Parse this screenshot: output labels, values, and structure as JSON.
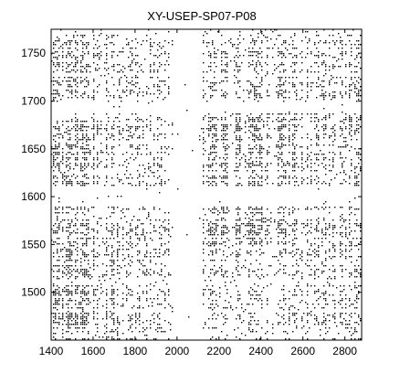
{
  "chart_data": {
    "type": "scatter",
    "title": "XY-USEP-SP07-P08",
    "xlabel": "",
    "ylabel": "",
    "xlim": [
      1400,
      2880
    ],
    "ylim": [
      1450,
      1775
    ],
    "x_ticks": [
      1400,
      1600,
      1800,
      2000,
      2200,
      2400,
      2600,
      2800
    ],
    "y_ticks": [
      1500,
      1550,
      1600,
      1650,
      1700,
      1750
    ],
    "grid": false,
    "legend": "none",
    "marker_color": "#000000",
    "description": "Dense recurrence-style dot plot; black dots scattered over the full range with dense blocks near x 1400-1720 and y 1450-1680, and x 2100-2550 and y 1550-1680, and sparse white bands near x 1980-2100 and y 1590-1610.",
    "dense_regions": [
      {
        "x": [
          1400,
          1720
        ],
        "y": [
          1450,
          1540
        ],
        "density": 0.6
      },
      {
        "x": [
          1400,
          1720
        ],
        "y": [
          1540,
          1600
        ],
        "density": 0.45
      },
      {
        "x": [
          1400,
          1700
        ],
        "y": [
          1610,
          1680
        ],
        "density": 0.5
      },
      {
        "x": [
          2120,
          2560
        ],
        "y": [
          1550,
          1590
        ],
        "density": 0.55
      },
      {
        "x": [
          2120,
          2560
        ],
        "y": [
          1610,
          1690
        ],
        "density": 0.55
      },
      {
        "x": [
          1400,
          1700
        ],
        "y": [
          1700,
          1775
        ],
        "density": 0.45
      },
      {
        "x": [
          2120,
          2560
        ],
        "y": [
          1700,
          1775
        ],
        "density": 0.35
      },
      {
        "x": [
          2560,
          2880
        ],
        "y": [
          1450,
          1775
        ],
        "density": 0.35
      },
      {
        "x": [
          1720,
          1980
        ],
        "y": [
          1450,
          1775
        ],
        "density": 0.3
      },
      {
        "x": [
          2120,
          2560
        ],
        "y": [
          1450,
          1550
        ],
        "density": 0.3
      }
    ],
    "sparse_bands": {
      "x": [
        [
          1980,
          2100
        ]
      ],
      "y": [
        [
          1590,
          1612
        ],
        [
          1688,
          1700
        ]
      ]
    }
  }
}
